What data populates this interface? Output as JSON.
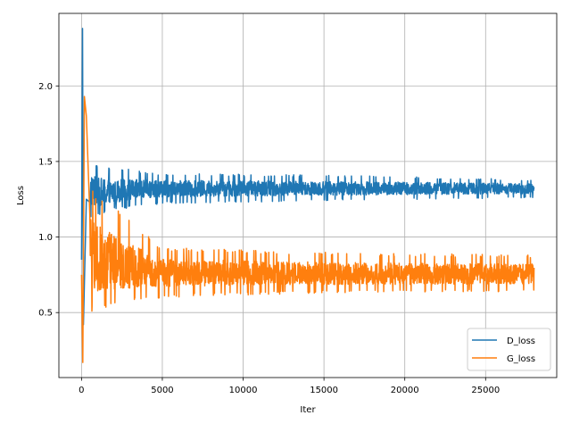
{
  "chart_data": {
    "type": "line",
    "xlabel": "Iter",
    "ylabel": "Loss",
    "xlim": [
      -1400,
      29400
    ],
    "ylim": [
      0.07,
      2.48
    ],
    "x_ticks": [
      0,
      5000,
      10000,
      15000,
      20000,
      25000
    ],
    "x_tick_labels": [
      "0",
      "5000",
      "10000",
      "15000",
      "20000",
      "25000"
    ],
    "y_ticks": [
      0.5,
      1.0,
      1.5,
      2.0
    ],
    "y_tick_labels": [
      "0.5",
      "1.0",
      "1.5",
      "2.0"
    ],
    "grid": true,
    "legend_position": "lower right",
    "n_iterations": 28000,
    "series": [
      {
        "name": "D_loss",
        "color": "#1f77b4",
        "description_points": [
          {
            "x": 0,
            "y": 0.85
          },
          {
            "x": 60,
            "y": 2.38
          },
          {
            "x": 120,
            "y": 0.42
          },
          {
            "x": 300,
            "y": 1.25
          },
          {
            "x": 600,
            "y": 1.3
          },
          {
            "x": 1000,
            "y": 1.28
          },
          {
            "x": 5000,
            "y": 1.32
          },
          {
            "x": 10000,
            "y": 1.32
          },
          {
            "x": 15000,
            "y": 1.32
          },
          {
            "x": 20000,
            "y": 1.32
          },
          {
            "x": 25000,
            "y": 1.32
          },
          {
            "x": 28000,
            "y": 1.32
          }
        ],
        "band_lower": [
          {
            "x": 500,
            "y": 1.12
          },
          {
            "x": 2000,
            "y": 1.18
          },
          {
            "x": 5000,
            "y": 1.22
          },
          {
            "x": 15000,
            "y": 1.24
          },
          {
            "x": 28000,
            "y": 1.26
          }
        ],
        "band_upper": [
          {
            "x": 500,
            "y": 1.5
          },
          {
            "x": 2000,
            "y": 1.46
          },
          {
            "x": 5000,
            "y": 1.42
          },
          {
            "x": 15000,
            "y": 1.41
          },
          {
            "x": 28000,
            "y": 1.38
          }
        ]
      },
      {
        "name": "G_loss",
        "color": "#ff7f0e",
        "description_points": [
          {
            "x": 0,
            "y": 0.75
          },
          {
            "x": 80,
            "y": 0.17
          },
          {
            "x": 180,
            "y": 1.93
          },
          {
            "x": 300,
            "y": 1.8
          },
          {
            "x": 600,
            "y": 0.9
          },
          {
            "x": 1000,
            "y": 0.8
          },
          {
            "x": 5000,
            "y": 0.76
          },
          {
            "x": 10000,
            "y": 0.76
          },
          {
            "x": 15000,
            "y": 0.75
          },
          {
            "x": 20000,
            "y": 0.75
          },
          {
            "x": 25000,
            "y": 0.75
          },
          {
            "x": 28000,
            "y": 0.75
          }
        ],
        "band_lower": [
          {
            "x": 500,
            "y": 0.5
          },
          {
            "x": 2500,
            "y": 0.55
          },
          {
            "x": 5000,
            "y": 0.6
          },
          {
            "x": 15000,
            "y": 0.63
          },
          {
            "x": 28000,
            "y": 0.64
          }
        ],
        "band_upper": [
          {
            "x": 500,
            "y": 1.35
          },
          {
            "x": 2500,
            "y": 1.15
          },
          {
            "x": 5000,
            "y": 0.93
          },
          {
            "x": 15000,
            "y": 0.9
          },
          {
            "x": 28000,
            "y": 0.88
          }
        ]
      }
    ]
  }
}
